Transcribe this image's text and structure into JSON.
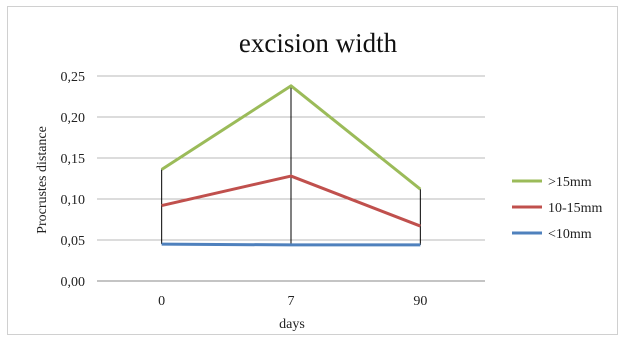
{
  "chart_data": {
    "type": "line",
    "title": "excision width",
    "xlabel": "days",
    "ylabel": "Procrustes distance",
    "categories": [
      "0",
      "7",
      "90"
    ],
    "ylim": [
      0,
      0.25
    ],
    "yticks": [
      "0,00",
      "0,05",
      "0,10",
      "0,15",
      "0,20",
      "0,25"
    ],
    "grid": true,
    "legend_position": "right",
    "series": [
      {
        "name": ">15mm",
        "values": [
          0.136,
          0.238,
          0.112
        ],
        "color": "#9bbb59"
      },
      {
        "name": "10-15mm",
        "values": [
          0.092,
          0.128,
          0.067
        ],
        "color": "#c0504d"
      },
      {
        "name": "<10mm",
        "values": [
          0.045,
          0.044,
          0.044
        ],
        "color": "#4f81bd"
      }
    ],
    "drop_lines": true
  }
}
